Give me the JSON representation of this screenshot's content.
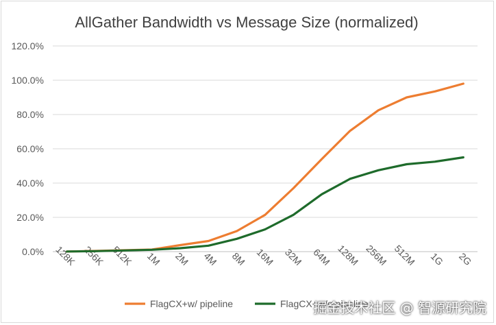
{
  "chart_data": {
    "type": "line",
    "title": "AllGather Bandwidth vs Message Size (normalized)",
    "xlabel": "",
    "ylabel": "",
    "categories": [
      "128K",
      "256K",
      "512K",
      "1M",
      "2M",
      "4M",
      "8M",
      "16M",
      "32M",
      "64M",
      "128M",
      "256M",
      "512M",
      "1G",
      "2G"
    ],
    "ylim": [
      0,
      120
    ],
    "yticks": [
      "0.0%",
      "20.0%",
      "40.0%",
      "60.0%",
      "80.0%",
      "100.0%",
      "120.0%"
    ],
    "grid": "horizontal",
    "legend_position": "bottom",
    "series": [
      {
        "name": "FlagCX+w/ pipeline",
        "color": "#ed7d31",
        "values": [
          0.1,
          0.4,
          0.8,
          1.2,
          3.8,
          6.2,
          12.0,
          21.5,
          37.0,
          54.0,
          70.5,
          82.5,
          90.0,
          93.5,
          98.0
        ]
      },
      {
        "name": "FlagCX+w/o pipeline",
        "color": "#1e6b2b",
        "values": [
          0.1,
          0.3,
          0.7,
          1.1,
          2.0,
          3.5,
          7.5,
          13.0,
          21.5,
          33.5,
          42.5,
          47.5,
          51.0,
          52.5,
          55.0
        ]
      }
    ]
  },
  "watermark": "掘金技术社区 @ 智源研究院"
}
